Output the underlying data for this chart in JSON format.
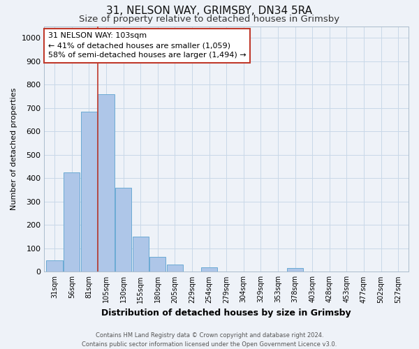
{
  "title1": "31, NELSON WAY, GRIMSBY, DN34 5RA",
  "title2": "Size of property relative to detached houses in Grimsby",
  "xlabel": "Distribution of detached houses by size in Grimsby",
  "ylabel": "Number of detached properties",
  "bar_labels": [
    "31sqm",
    "56sqm",
    "81sqm",
    "105sqm",
    "130sqm",
    "155sqm",
    "180sqm",
    "205sqm",
    "229sqm",
    "254sqm",
    "279sqm",
    "304sqm",
    "329sqm",
    "353sqm",
    "378sqm",
    "403sqm",
    "428sqm",
    "453sqm",
    "477sqm",
    "502sqm",
    "527sqm"
  ],
  "bar_heights": [
    50,
    425,
    685,
    760,
    360,
    150,
    65,
    30,
    0,
    20,
    0,
    0,
    0,
    0,
    15,
    0,
    0,
    0,
    0,
    0,
    0
  ],
  "bar_color": "#aec6e8",
  "bar_edge_color": "#6aaad4",
  "grid_color": "#c8d8e8",
  "vline_x_index": 3,
  "vline_color": "#c0392b",
  "annotation_text": "31 NELSON WAY: 103sqm\n← 41% of detached houses are smaller (1,059)\n58% of semi-detached houses are larger (1,494) →",
  "annotation_box_color": "#ffffff",
  "annotation_border_color": "#c0392b",
  "ylim": [
    0,
    1050
  ],
  "yticks": [
    0,
    100,
    200,
    300,
    400,
    500,
    600,
    700,
    800,
    900,
    1000
  ],
  "footer": "Contains HM Land Registry data © Crown copyright and database right 2024.\nContains public sector information licensed under the Open Government Licence v3.0.",
  "bg_color": "#eef2f8",
  "title1_fontsize": 11,
  "title2_fontsize": 9.5,
  "annotation_fontsize": 8,
  "ylabel_fontsize": 8,
  "xlabel_fontsize": 9,
  "tick_fontsize": 7,
  "ytick_fontsize": 8
}
